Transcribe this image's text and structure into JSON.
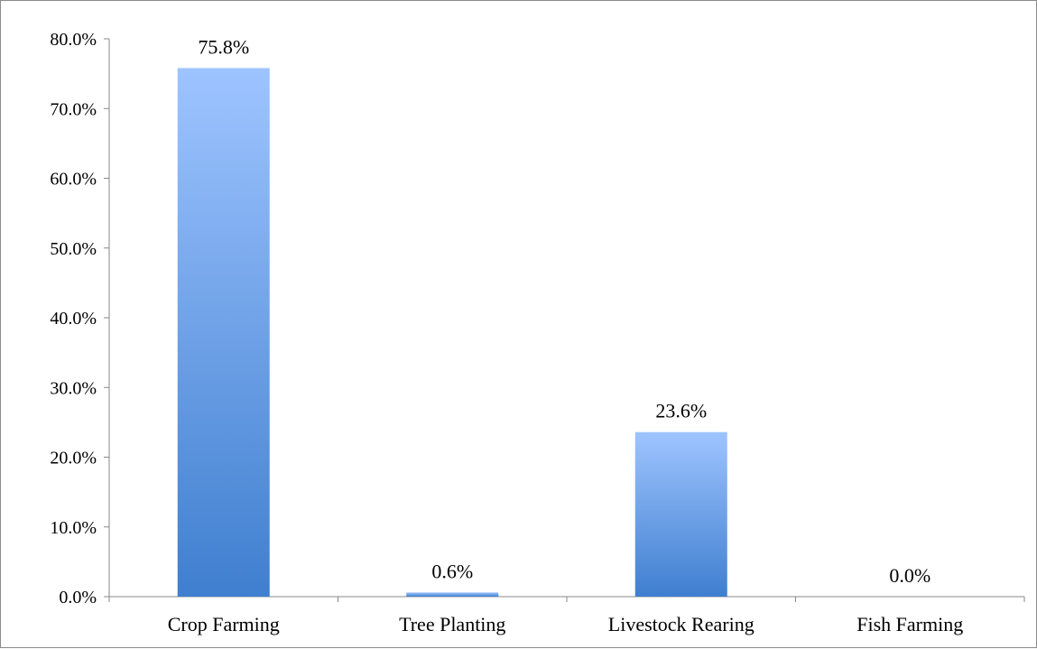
{
  "chart_data": {
    "type": "bar",
    "title": "",
    "xlabel": "",
    "ylabel": "",
    "categories": [
      "Crop Farming",
      "Tree Planting",
      "Livestock Rearing",
      "Fish Farming"
    ],
    "values": [
      75.8,
      0.6,
      23.6,
      0.0
    ],
    "data_labels": [
      "75.8%",
      "0.6%",
      "23.6%",
      "0.0%"
    ],
    "ylim": [
      0,
      80
    ],
    "yticks": [
      0,
      10,
      20,
      30,
      40,
      50,
      60,
      70,
      80
    ],
    "ytick_labels": [
      "0.0%",
      "10.0%",
      "20.0%",
      "30.0%",
      "40.0%",
      "50.0%",
      "60.0%",
      "70.0%",
      "80.0%"
    ],
    "grid": false,
    "legend": "none",
    "colors": {
      "bar_top": "#9ec4ff",
      "bar_bottom": "#3f7fcf",
      "axis": "#888888"
    }
  }
}
